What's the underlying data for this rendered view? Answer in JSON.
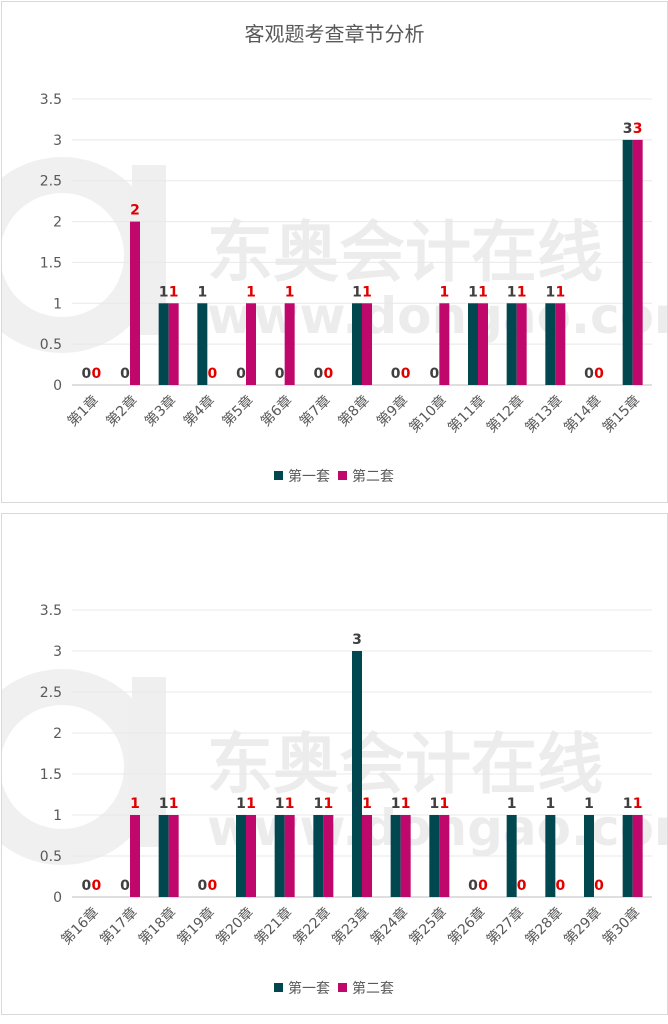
{
  "colors": {
    "series1": "#004750",
    "series2": "#c0086c",
    "label1": "#404040",
    "label2": "#e00000",
    "grid": "#e8e8e8"
  },
  "watermark": {
    "line1": "东奥会计在线",
    "line2": "www.dongao.com"
  },
  "chart_data": [
    {
      "type": "bar",
      "title": "客观题考查章节分析",
      "categories": [
        "第1章",
        "第2章",
        "第3章",
        "第4章",
        "第5章",
        "第6章",
        "第7章",
        "第8章",
        "第9章",
        "第10章",
        "第11章",
        "第12章",
        "第13章",
        "第14章",
        "第15章"
      ],
      "series": [
        {
          "name": "第一套",
          "values": [
            0,
            0,
            1,
            1,
            0,
            0,
            0,
            1,
            0,
            0,
            1,
            1,
            1,
            0,
            3
          ]
        },
        {
          "name": "第二套",
          "values": [
            0,
            2,
            1,
            0,
            1,
            1,
            0,
            1,
            0,
            1,
            1,
            1,
            1,
            0,
            3
          ]
        }
      ],
      "ylim": [
        0,
        3.5
      ],
      "yticks": [
        "0",
        "0.5",
        "1",
        "1.5",
        "2",
        "2.5",
        "3",
        "3.5"
      ],
      "grid": true,
      "legend": "bottom"
    },
    {
      "type": "bar",
      "title": "",
      "categories": [
        "第16章",
        "第17章",
        "第18章",
        "第19章",
        "第20章",
        "第21章",
        "第22章",
        "第23章",
        "第24章",
        "第25章",
        "第26章",
        "第27章",
        "第28章",
        "第29章",
        "第30章"
      ],
      "series": [
        {
          "name": "第一套",
          "values": [
            0,
            0,
            1,
            0,
            1,
            1,
            1,
            3,
            1,
            1,
            0,
            1,
            1,
            1,
            1
          ]
        },
        {
          "name": "第二套",
          "values": [
            0,
            1,
            1,
            0,
            1,
            1,
            1,
            1,
            1,
            1,
            0,
            0,
            0,
            0,
            1
          ]
        }
      ],
      "ylim": [
        0,
        3.5
      ],
      "yticks": [
        "0",
        "0.5",
        "1",
        "1.5",
        "2",
        "2.5",
        "3",
        "3.5"
      ],
      "grid": true,
      "legend": "bottom"
    }
  ]
}
